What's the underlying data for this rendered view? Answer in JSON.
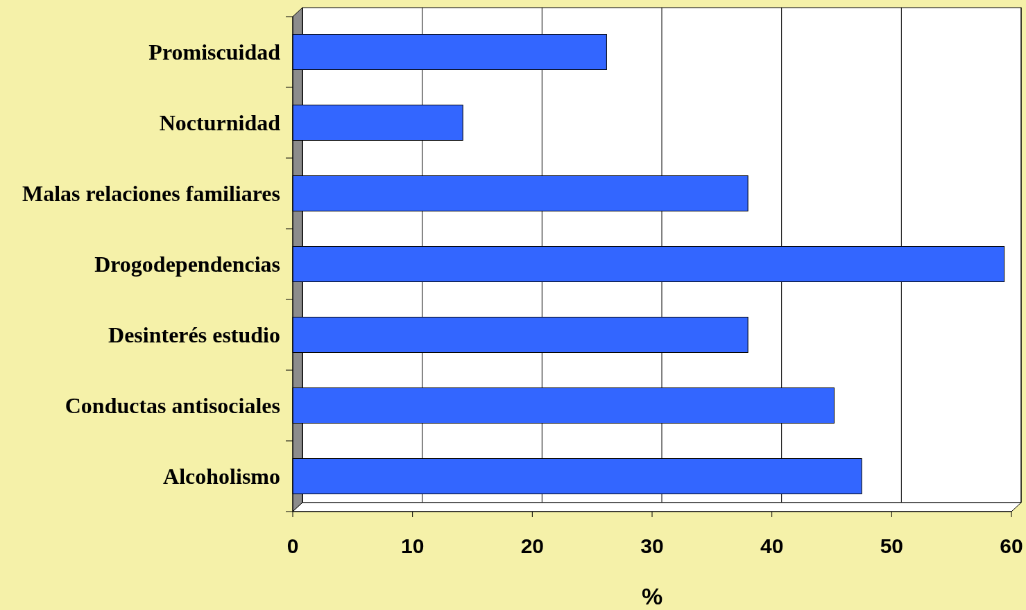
{
  "chart_data": {
    "type": "bar",
    "orientation": "horizontal",
    "categories": [
      "Promiscuidad",
      "Nocturnidad",
      "Malas relaciones familiares",
      "Drogodependencias",
      "Desinterés estudio",
      "Conductas antisociales",
      "Alcoholismo"
    ],
    "values": [
      26.2,
      14.2,
      38,
      59.4,
      38,
      45.2,
      47.5
    ],
    "color": "#3366ff",
    "xlim": [
      0,
      60
    ],
    "xticks": [
      0,
      10,
      20,
      30,
      40,
      50,
      60
    ],
    "xlabel": "%",
    "grid": "x"
  }
}
